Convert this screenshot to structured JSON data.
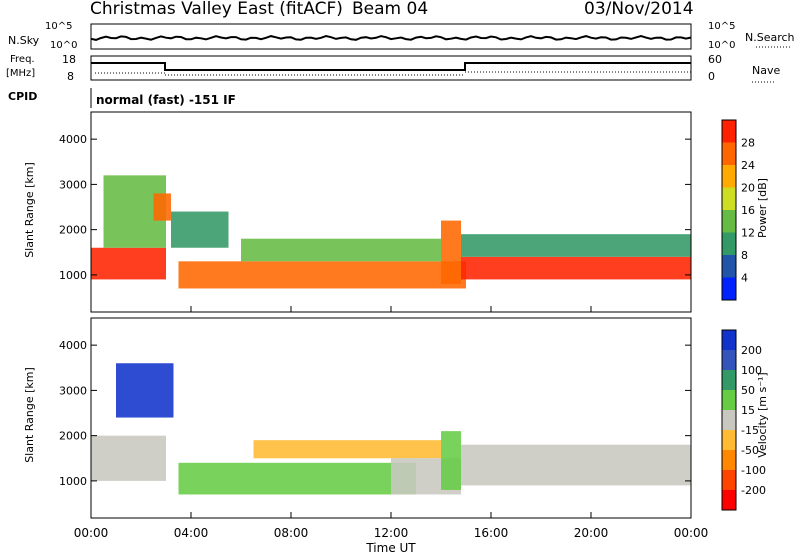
{
  "header": {
    "station": "Christmas Valley East (fitACF)",
    "beam": "Beam 04",
    "date": "03/Nov/2014"
  },
  "strip_labels": {
    "nsky": "N.Sky",
    "nsky_top": "10^5",
    "nsky_bottom": "10^0",
    "nsearch": "N.Search",
    "nsearch_top": "10^5",
    "nsearch_bottom": "10^0",
    "freq_line1": "Freq.",
    "freq_line2": "[MHz]",
    "freq_top": "18",
    "freq_bottom": "8",
    "nave": "Nave",
    "nave_top": "60",
    "nave_bottom": "0",
    "cpid": "CPID",
    "cpid_text": "normal (fast) -151 IF"
  },
  "axes": {
    "xlabel": "Time UT",
    "ylabel": "Slant Range [km]",
    "xticks": [
      "00:00",
      "04:00",
      "08:00",
      "12:00",
      "16:00",
      "20:00",
      "00:00"
    ],
    "yticks": [
      "1000",
      "2000",
      "3000",
      "4000"
    ]
  },
  "colorbars": {
    "power": {
      "label": "Power [dB]",
      "ticks": [
        "4",
        "8",
        "12",
        "16",
        "20",
        "24",
        "28"
      ],
      "colors": [
        "#0022ff",
        "#2255aa",
        "#339966",
        "#66bb44",
        "#ccdd22",
        "#ffaa00",
        "#ff6600",
        "#ff2200"
      ]
    },
    "velocity": {
      "label": "Velocity [m s⁻¹]",
      "ticks": [
        "200",
        "100",
        "50",
        "15",
        "-15",
        "-50",
        "-100",
        "-200"
      ],
      "colors": [
        "#1133cc",
        "#3355bb",
        "#339966",
        "#66cc44",
        "#c8c8c0",
        "#ffbb33",
        "#ff8800",
        "#ff4400",
        "#ff0000"
      ]
    }
  },
  "chart_data": [
    {
      "type": "heatmap",
      "title": "Power",
      "x_unit": "hours UT",
      "y_unit": "km",
      "xlim": [
        0,
        24
      ],
      "ylim": [
        180,
        4600
      ],
      "zlim": [
        0,
        32
      ],
      "regions": [
        {
          "x": [
            0,
            3
          ],
          "y": [
            900,
            1600
          ],
          "z": 28
        },
        {
          "x": [
            0.5,
            3
          ],
          "y": [
            1600,
            3200
          ],
          "z": 14
        },
        {
          "x": [
            2.5,
            3.2
          ],
          "y": [
            2200,
            2800
          ],
          "z": 24
        },
        {
          "x": [
            3.2,
            5.5
          ],
          "y": [
            1600,
            2400
          ],
          "z": 10
        },
        {
          "x": [
            3.5,
            15
          ],
          "y": [
            700,
            1300
          ],
          "z": 24
        },
        {
          "x": [
            6,
            14
          ],
          "y": [
            1300,
            1800
          ],
          "z": 14
        },
        {
          "x": [
            14,
            14.8
          ],
          "y": [
            800,
            2200
          ],
          "z": 24
        },
        {
          "x": [
            14.8,
            24
          ],
          "y": [
            900,
            1400
          ],
          "z": 28
        },
        {
          "x": [
            14.8,
            24
          ],
          "y": [
            1400,
            1900
          ],
          "z": 8
        }
      ]
    },
    {
      "type": "heatmap",
      "title": "Velocity",
      "x_unit": "hours UT",
      "y_unit": "km",
      "xlim": [
        0,
        24
      ],
      "ylim": [
        180,
        4600
      ],
      "zlim": [
        -250,
        250
      ],
      "regions": [
        {
          "x": [
            0,
            3
          ],
          "y": [
            1000,
            2000
          ],
          "z": 0
        },
        {
          "x": [
            1,
            3.3
          ],
          "y": [
            2400,
            3600
          ],
          "z": 200
        },
        {
          "x": [
            3.5,
            13
          ],
          "y": [
            700,
            1400
          ],
          "z": 30
        },
        {
          "x": [
            6.5,
            14
          ],
          "y": [
            1500,
            1900
          ],
          "z": -50
        },
        {
          "x": [
            12,
            14.8
          ],
          "y": [
            700,
            1500
          ],
          "z": 0
        },
        {
          "x": [
            14,
            14.8
          ],
          "y": [
            800,
            2100
          ],
          "z": 30
        },
        {
          "x": [
            14.8,
            24
          ],
          "y": [
            900,
            1800
          ],
          "z": 0
        }
      ]
    }
  ]
}
